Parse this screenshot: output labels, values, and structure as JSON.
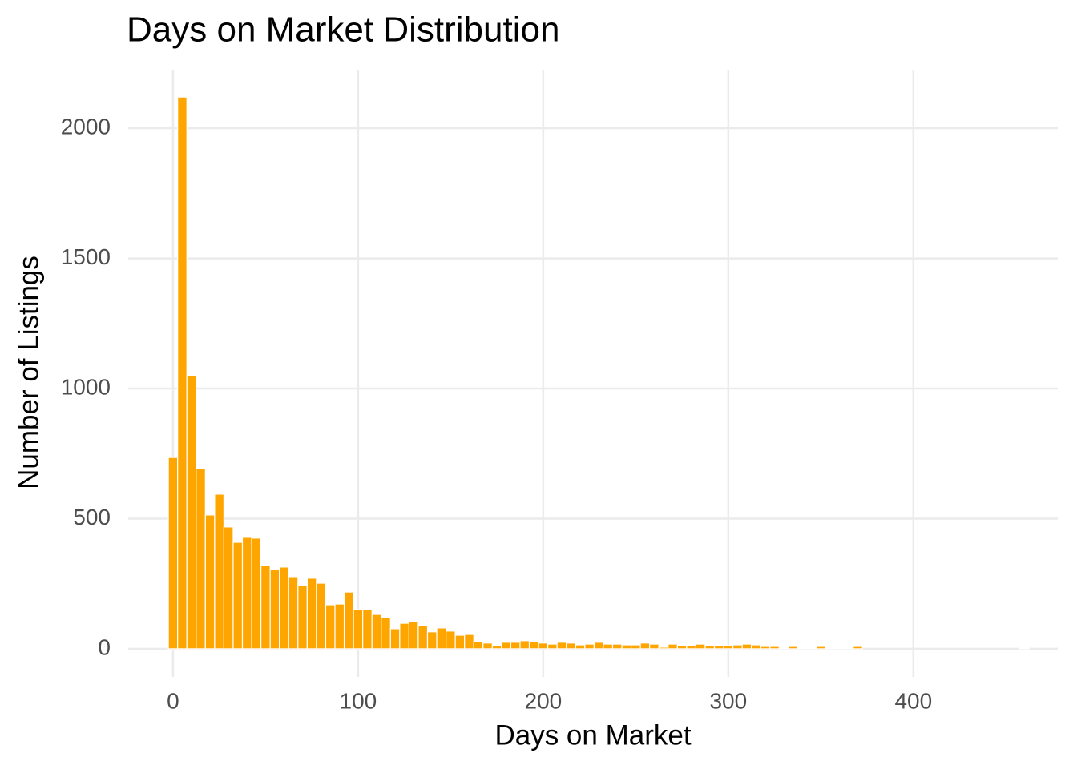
{
  "chart_data": {
    "type": "histogram",
    "title": "Days on Market Distribution",
    "x_label": "Days on Market",
    "y_label": "Number of Listings",
    "color": "#ffa500",
    "grid": true,
    "bins": [
      -2.5,
      2.5,
      7.5,
      12.5,
      17.5,
      22.5,
      27.5,
      32.5,
      37.5,
      42.5,
      47.5,
      52.5,
      57.5,
      62.5,
      67.5,
      72.5,
      77.5,
      82.5,
      87.5,
      92.5,
      97.5,
      102.5,
      107.5,
      112.5,
      117.5,
      122.5,
      127.5,
      132.5,
      137.5,
      142.5,
      147.5,
      152.5,
      157.5,
      162.5,
      167.5,
      172.5,
      177.5,
      182.5,
      187.5,
      192.5,
      197.5,
      202.5,
      207.5,
      212.5,
      217.5,
      222.5,
      227.5,
      232.5,
      237.5,
      242.5,
      247.5,
      252.5,
      257.5,
      262.5,
      267.5,
      272.5,
      277.5,
      282.5,
      287.5,
      292.5,
      297.5,
      302.5,
      307.5,
      312.5,
      317.5,
      322.5,
      327.5,
      332.5,
      337.5,
      342.5,
      347.5,
      352.5,
      357.5,
      362.5,
      367.5,
      372.5,
      377.5,
      382.5,
      387.5,
      392.5,
      397.5,
      402.5,
      407.5,
      412.5,
      417.5,
      422.5,
      427.5,
      432.5,
      437.5,
      442.5,
      447.5,
      452.5,
      457.5,
      462.5
    ],
    "values": [
      735,
      2120,
      1050,
      692,
      514,
      594,
      468,
      409,
      428,
      425,
      320,
      305,
      314,
      277,
      243,
      271,
      252,
      169,
      172,
      218,
      151,
      151,
      132,
      120,
      77,
      98,
      105,
      89,
      65,
      80,
      68,
      52,
      55,
      28,
      22,
      12,
      25,
      25,
      31,
      28,
      22,
      18,
      25,
      22,
      15,
      18,
      25,
      18,
      18,
      15,
      15,
      22,
      18,
      6,
      18,
      12,
      12,
      18,
      12,
      12,
      12,
      15,
      18,
      15,
      9,
      9,
      3,
      9,
      3,
      3,
      9,
      3,
      3,
      3,
      9,
      0,
      0,
      0,
      0,
      0,
      0,
      0,
      0,
      0,
      0,
      0,
      0,
      0,
      0,
      0,
      0,
      0,
      3
    ],
    "xlim": [
      -24.2,
      478
    ],
    "xticks": [
      0,
      100,
      200,
      300,
      400
    ],
    "ylim": [
      -108,
      2222
    ],
    "yticks": [
      0,
      500,
      1000,
      1500,
      2000
    ]
  }
}
